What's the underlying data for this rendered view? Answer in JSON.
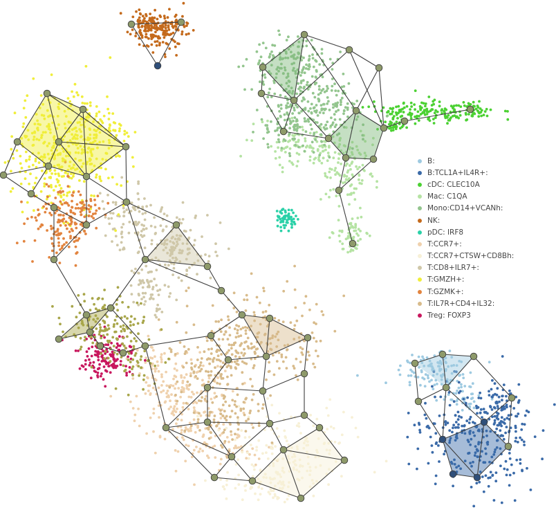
{
  "chart_data": {
    "type": "scatter",
    "title": "",
    "xlabel": "",
    "ylabel": "",
    "grid": false,
    "axes_visible": false,
    "legend_position": "right",
    "clusters": [
      {
        "label": "B:",
        "color": "#9ecae1"
      },
      {
        "label": "B:TCL1A+IL4R+:",
        "color": "#3a6aa8"
      },
      {
        "label": "cDC: CLEC10A",
        "color": "#4cd133"
      },
      {
        "label": "Mac: C1QA",
        "color": "#b5e3a3"
      },
      {
        "label": "Mono:CD14+VCANh:",
        "color": "#93c58e"
      },
      {
        "label": "NK:",
        "color": "#c46a1c"
      },
      {
        "label": "pDC: IRF8",
        "color": "#2bd1a8"
      },
      {
        "label": "T:CCR7+:",
        "color": "#efd1ad"
      },
      {
        "label": "T:CCR7+CTSW+CD8Bh:",
        "color": "#f7f0d6"
      },
      {
        "label": "T:CD8+ILR7+:",
        "color": "#cfc7a8"
      },
      {
        "label": "T:GMZH+:",
        "color": "#f0ee3a"
      },
      {
        "label": "T:GZMK+:",
        "color": "#e2843f"
      },
      {
        "label": "T:IL7R+CD4+IL32:",
        "color": "#d8bb8b"
      },
      {
        "label": "Treg: FOXP3",
        "color": "#c8175e"
      }
    ],
    "graph_edge_color": "#3d3d3d",
    "graph_node_color": "#8e9a6a"
  }
}
